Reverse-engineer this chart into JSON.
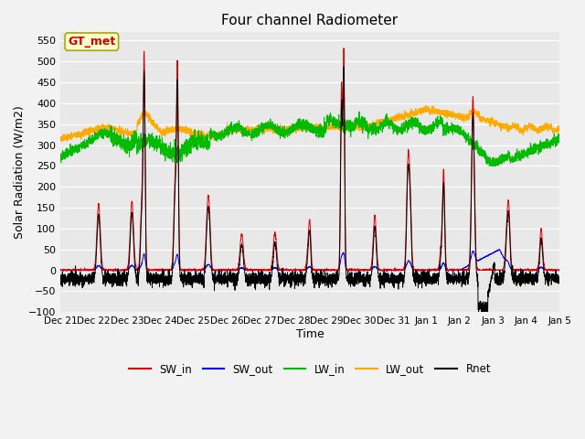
{
  "title": "Four channel Radiometer",
  "xlabel": "Time",
  "ylabel": "Solar Radiation (W/m2)",
  "ylim": [
    -100,
    570
  ],
  "yticks": [
    -100,
    -50,
    0,
    50,
    100,
    150,
    200,
    250,
    300,
    350,
    400,
    450,
    500,
    550
  ],
  "annotation_text": "GT_met",
  "annotation_color": "#cc0000",
  "annotation_bg": "#ffffcc",
  "annotation_border": "#aaa800",
  "colors": {
    "SW_in": "#dd0000",
    "SW_out": "#0000ee",
    "LW_in": "#00bb00",
    "LW_out": "#ffaa00",
    "Rnet": "#000000"
  },
  "plot_bg": "#e8e8e8",
  "x_tick_labels": [
    "Dec 21",
    "Dec 22",
    "Dec 23",
    "Dec 24",
    "Dec 25",
    "Dec 26",
    "Dec 27",
    "Dec 28",
    "Dec 29",
    "Dec 30",
    "Dec 31",
    "Jan 1",
    "Jan 2",
    "Jan 3",
    "Jan 4",
    "Jan 5"
  ],
  "n_days": 15
}
